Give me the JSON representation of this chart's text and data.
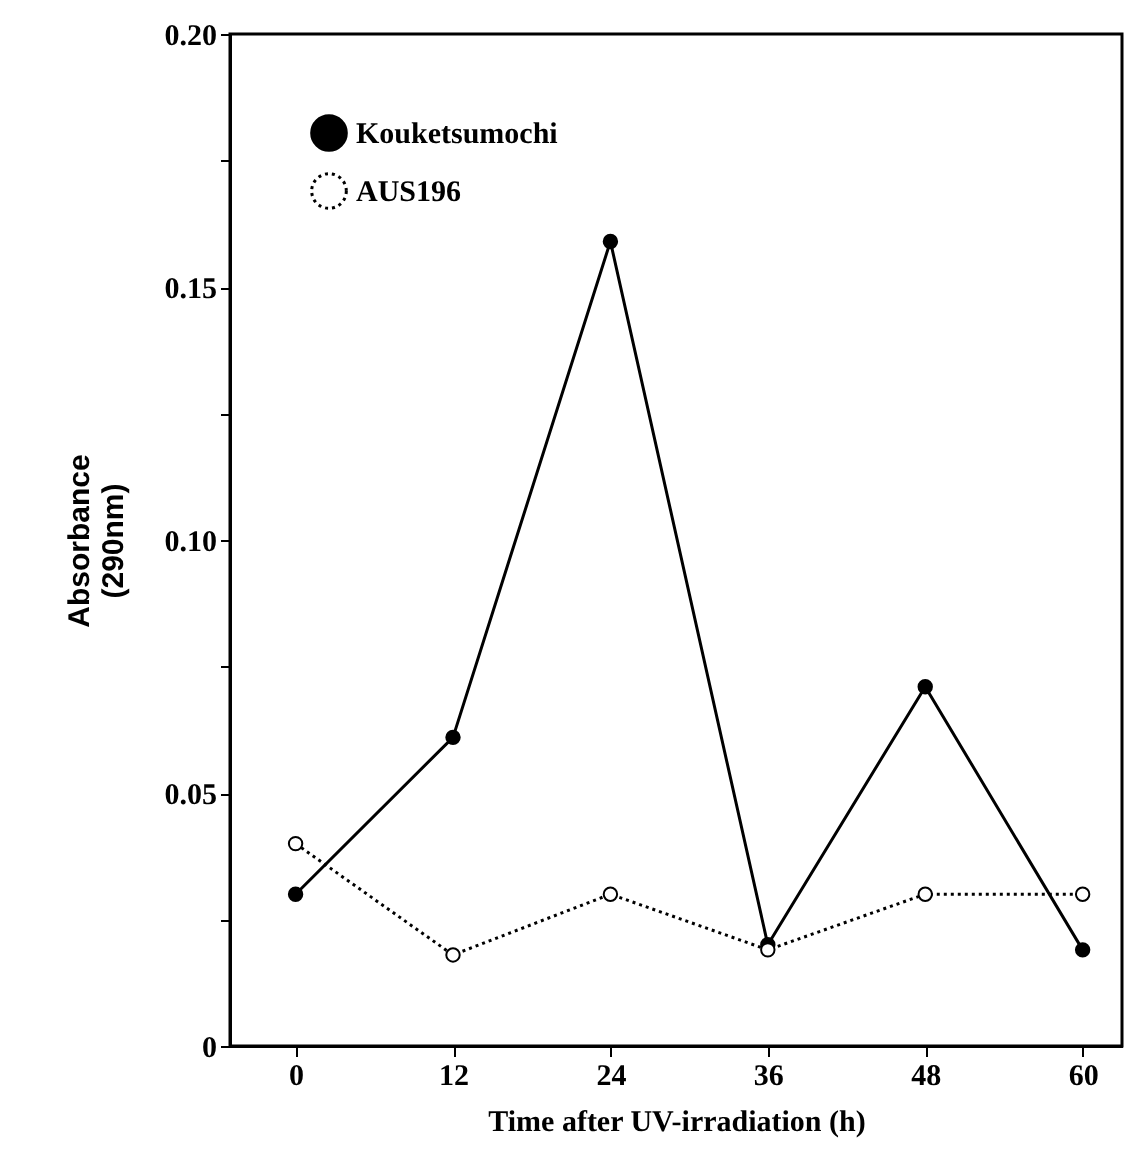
{
  "chart_data": {
    "type": "line",
    "xlabel": "Time after UV-irradiation (h)",
    "ylabel": "Absorbance\n(290nm)",
    "x": [
      0,
      12,
      24,
      36,
      48,
      60
    ],
    "series": [
      {
        "name": "Kouketsumochi",
        "color": "#000000",
        "line_style": "solid",
        "values": [
          0.03,
          0.061,
          0.159,
          0.02,
          0.071,
          0.019
        ]
      },
      {
        "name": "AUS196",
        "color": "#000000",
        "line_style": "dotted",
        "values": [
          0.04,
          0.018,
          0.03,
          0.019,
          0.03,
          0.03
        ]
      }
    ],
    "xlim": [
      -5,
      63
    ],
    "xticks": [
      0,
      12,
      24,
      36,
      48,
      60
    ],
    "ylim": [
      0,
      0.2
    ],
    "yticks": [
      0,
      {
        "value": 0.025,
        "label": null
      },
      {
        "value": 0.05,
        "label": "0.05"
      },
      {
        "value": 0.075,
        "label": null
      },
      {
        "value": 0.1,
        "label": "0.10"
      },
      {
        "value": 0.125,
        "label": null
      },
      {
        "value": 0.15,
        "label": "0.15"
      },
      {
        "value": 0.175,
        "label": null
      },
      {
        "value": 0.2,
        "label": "0.20"
      }
    ],
    "marker": "circle",
    "legend": "top left",
    "grid": false
  }
}
